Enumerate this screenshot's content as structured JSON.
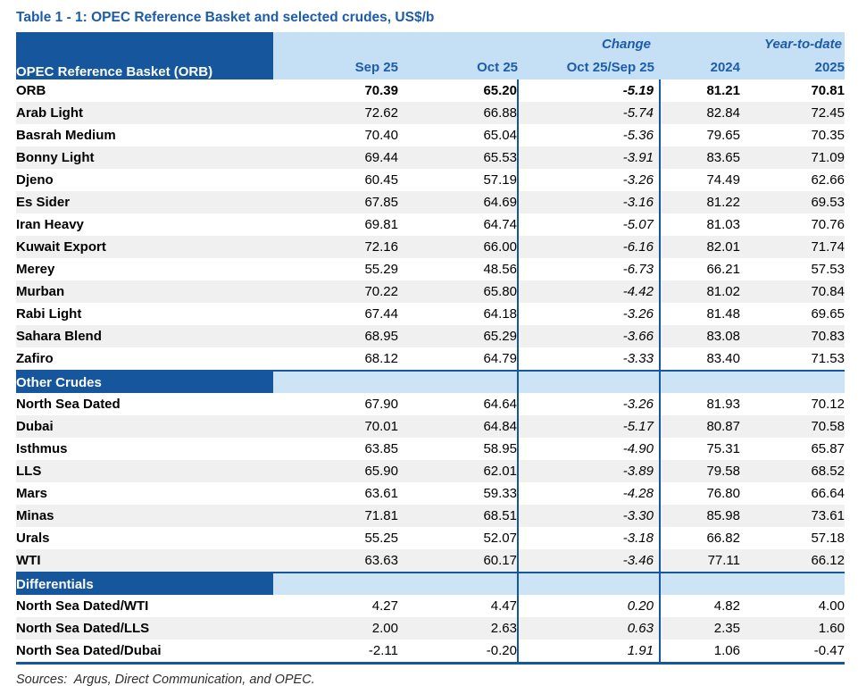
{
  "chart_data": {
    "type": "table",
    "title": "Table 1 - 1: OPEC Reference Basket and selected crudes, US$/b",
    "corner_label": "OPEC Reference Basket (ORB)",
    "group_headers": {
      "change": "Change",
      "year_to_date": "Year-to-date"
    },
    "columns": [
      "Sep 25",
      "Oct 25",
      "Oct 25/Sep 25",
      "2024",
      "2025"
    ],
    "sections": [
      {
        "header": null,
        "rows": [
          {
            "label": "ORB",
            "bold": true,
            "values": [
              "70.39",
              "65.20",
              "-5.19",
              "81.21",
              "70.81"
            ]
          },
          {
            "label": "Arab Light",
            "values": [
              "72.62",
              "66.88",
              "-5.74",
              "82.84",
              "72.45"
            ]
          },
          {
            "label": "Basrah Medium",
            "values": [
              "70.40",
              "65.04",
              "-5.36",
              "79.65",
              "70.35"
            ]
          },
          {
            "label": "Bonny Light",
            "values": [
              "69.44",
              "65.53",
              "-3.91",
              "83.65",
              "71.09"
            ]
          },
          {
            "label": "Djeno",
            "values": [
              "60.45",
              "57.19",
              "-3.26",
              "74.49",
              "62.66"
            ]
          },
          {
            "label": "Es Sider",
            "values": [
              "67.85",
              "64.69",
              "-3.16",
              "81.22",
              "69.53"
            ]
          },
          {
            "label": "Iran Heavy",
            "values": [
              "69.81",
              "64.74",
              "-5.07",
              "81.03",
              "70.76"
            ]
          },
          {
            "label": "Kuwait Export",
            "values": [
              "72.16",
              "66.00",
              "-6.16",
              "82.01",
              "71.74"
            ]
          },
          {
            "label": "Merey",
            "values": [
              "55.29",
              "48.56",
              "-6.73",
              "66.21",
              "57.53"
            ]
          },
          {
            "label": "Murban",
            "values": [
              "70.22",
              "65.80",
              "-4.42",
              "81.02",
              "70.84"
            ]
          },
          {
            "label": "Rabi Light",
            "values": [
              "67.44",
              "64.18",
              "-3.26",
              "81.48",
              "69.65"
            ]
          },
          {
            "label": "Sahara Blend",
            "values": [
              "68.95",
              "65.29",
              "-3.66",
              "83.08",
              "70.83"
            ]
          },
          {
            "label": "Zafiro",
            "values": [
              "68.12",
              "64.79",
              "-3.33",
              "83.40",
              "71.53"
            ]
          }
        ]
      },
      {
        "header": "Other Crudes",
        "rows": [
          {
            "label": "North Sea Dated",
            "values": [
              "67.90",
              "64.64",
              "-3.26",
              "81.93",
              "70.12"
            ]
          },
          {
            "label": "Dubai",
            "values": [
              "70.01",
              "64.84",
              "-5.17",
              "80.87",
              "70.58"
            ]
          },
          {
            "label": "Isthmus",
            "values": [
              "63.85",
              "58.95",
              "-4.90",
              "75.31",
              "65.87"
            ]
          },
          {
            "label": "LLS",
            "values": [
              "65.90",
              "62.01",
              "-3.89",
              "79.58",
              "68.52"
            ]
          },
          {
            "label": "Mars",
            "values": [
              "63.61",
              "59.33",
              "-4.28",
              "76.80",
              "66.64"
            ]
          },
          {
            "label": "Minas",
            "values": [
              "71.81",
              "68.51",
              "-3.30",
              "85.98",
              "73.61"
            ]
          },
          {
            "label": "Urals",
            "values": [
              "55.25",
              "52.07",
              "-3.18",
              "66.82",
              "57.18"
            ]
          },
          {
            "label": "WTI",
            "values": [
              "63.63",
              "60.17",
              "-3.46",
              "77.11",
              "66.12"
            ]
          }
        ]
      },
      {
        "header": "Differentials",
        "rows": [
          {
            "label": "North Sea Dated/WTI",
            "values": [
              "4.27",
              "4.47",
              "0.20",
              "4.82",
              "4.00"
            ]
          },
          {
            "label": "North Sea Dated/LLS",
            "values": [
              "2.00",
              "2.63",
              "0.63",
              "2.35",
              "1.60"
            ]
          },
          {
            "label": "North Sea Dated/Dubai",
            "values": [
              "-2.11",
              "-0.20",
              "1.91",
              "1.06",
              "-0.47"
            ]
          }
        ]
      }
    ],
    "footer": "Sources:  Argus, Direct Communication, and OPEC.",
    "layout": {
      "grid": "off",
      "change_column_rules": "vertical dark-blue rules around change column",
      "bottom_rule": "thick dark-blue"
    }
  },
  "colors": {
    "dark_blue": "#16569D",
    "header_light_blue": "#C5E0F5",
    "section_light_blue": "#CDE4F7",
    "stripe_gray": "#F0F0F0",
    "title_text_blue": "#1D5CA9"
  }
}
